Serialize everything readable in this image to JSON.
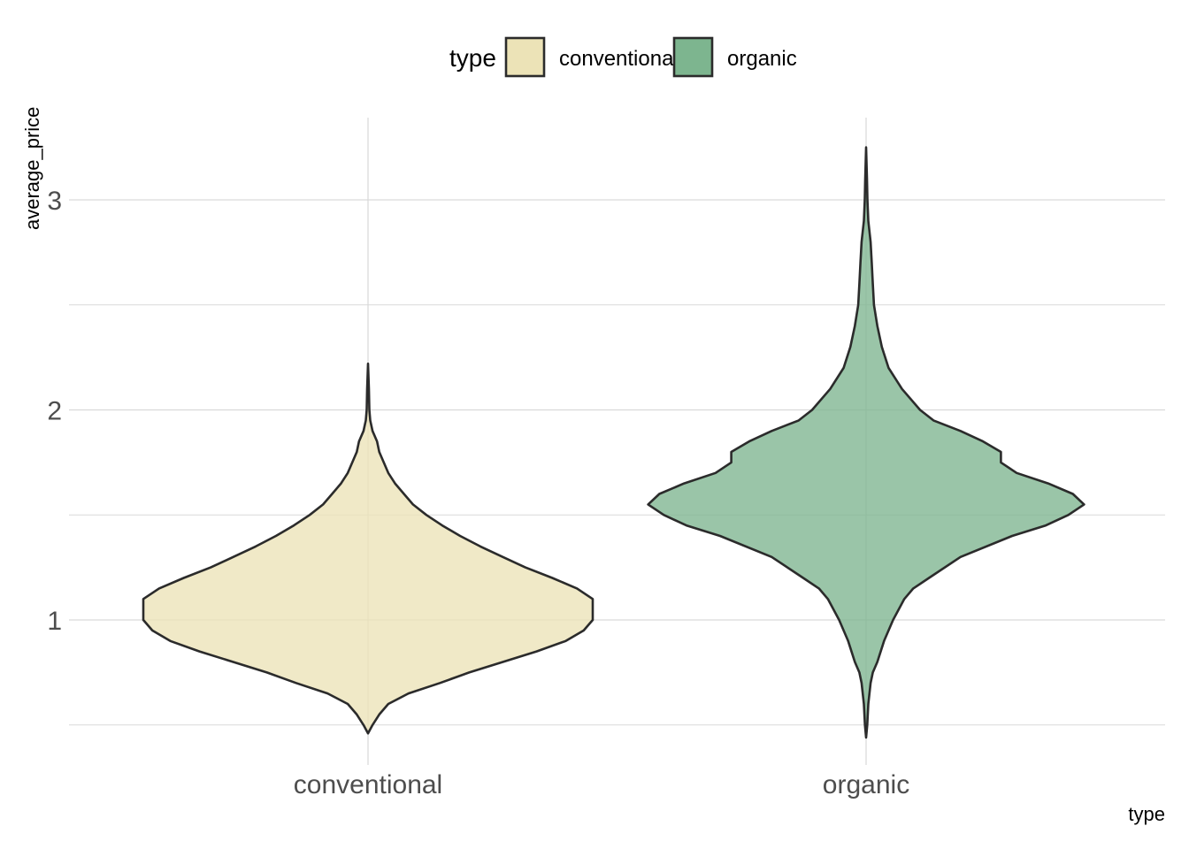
{
  "chart_data": {
    "type": "violin",
    "title": "",
    "xlabel": "type",
    "ylabel": "average_price",
    "ylim": [
      0.45,
      3.4
    ],
    "y_ticks": [
      1,
      2,
      3
    ],
    "grid": true,
    "legend": {
      "title": "type",
      "position": "top",
      "entries": [
        {
          "label": "conventional",
          "color": "#ece3b7"
        },
        {
          "label": "organic",
          "color": "#7db58f"
        }
      ]
    },
    "categories": [
      "conventional",
      "organic"
    ],
    "series": [
      {
        "name": "conventional",
        "color": "#ece3b7",
        "min": 0.46,
        "max": 2.22,
        "density": [
          [
            0.46,
            0.0
          ],
          [
            0.5,
            0.02
          ],
          [
            0.55,
            0.05
          ],
          [
            0.6,
            0.09
          ],
          [
            0.65,
            0.18
          ],
          [
            0.7,
            0.32
          ],
          [
            0.75,
            0.45
          ],
          [
            0.8,
            0.6
          ],
          [
            0.85,
            0.75
          ],
          [
            0.9,
            0.88
          ],
          [
            0.95,
            0.96
          ],
          [
            1.0,
            1.0
          ],
          [
            1.05,
            1.0
          ],
          [
            1.1,
            1.0
          ],
          [
            1.15,
            0.93
          ],
          [
            1.2,
            0.82
          ],
          [
            1.25,
            0.7
          ],
          [
            1.3,
            0.6
          ],
          [
            1.35,
            0.5
          ],
          [
            1.4,
            0.41
          ],
          [
            1.45,
            0.33
          ],
          [
            1.5,
            0.26
          ],
          [
            1.55,
            0.2
          ],
          [
            1.6,
            0.16
          ],
          [
            1.65,
            0.12
          ],
          [
            1.7,
            0.09
          ],
          [
            1.75,
            0.07
          ],
          [
            1.8,
            0.05
          ],
          [
            1.85,
            0.04
          ],
          [
            1.9,
            0.02
          ],
          [
            1.95,
            0.01
          ],
          [
            2.0,
            0.006
          ],
          [
            2.1,
            0.004
          ],
          [
            2.22,
            0.0
          ]
        ]
      },
      {
        "name": "organic",
        "color": "#7db58f",
        "min": 0.44,
        "max": 3.25,
        "density": [
          [
            0.44,
            0.0
          ],
          [
            0.5,
            0.005
          ],
          [
            0.6,
            0.01
          ],
          [
            0.7,
            0.02
          ],
          [
            0.75,
            0.03
          ],
          [
            0.8,
            0.05
          ],
          [
            0.9,
            0.08
          ],
          [
            1.0,
            0.12
          ],
          [
            1.1,
            0.17
          ],
          [
            1.15,
            0.21
          ],
          [
            1.2,
            0.28
          ],
          [
            1.3,
            0.42
          ],
          [
            1.4,
            0.65
          ],
          [
            1.45,
            0.8
          ],
          [
            1.5,
            0.9
          ],
          [
            1.55,
            0.97
          ],
          [
            1.6,
            0.92
          ],
          [
            1.65,
            0.81
          ],
          [
            1.7,
            0.67
          ],
          [
            1.75,
            0.6
          ],
          [
            1.8,
            0.6
          ],
          [
            1.85,
            0.52
          ],
          [
            1.9,
            0.42
          ],
          [
            1.95,
            0.3
          ],
          [
            2.0,
            0.24
          ],
          [
            2.1,
            0.16
          ],
          [
            2.2,
            0.1
          ],
          [
            2.3,
            0.07
          ],
          [
            2.4,
            0.05
          ],
          [
            2.5,
            0.035
          ],
          [
            2.6,
            0.03
          ],
          [
            2.7,
            0.025
          ],
          [
            2.8,
            0.02
          ],
          [
            2.9,
            0.01
          ],
          [
            3.0,
            0.006
          ],
          [
            3.1,
            0.004
          ],
          [
            3.25,
            0.0
          ]
        ]
      }
    ]
  }
}
